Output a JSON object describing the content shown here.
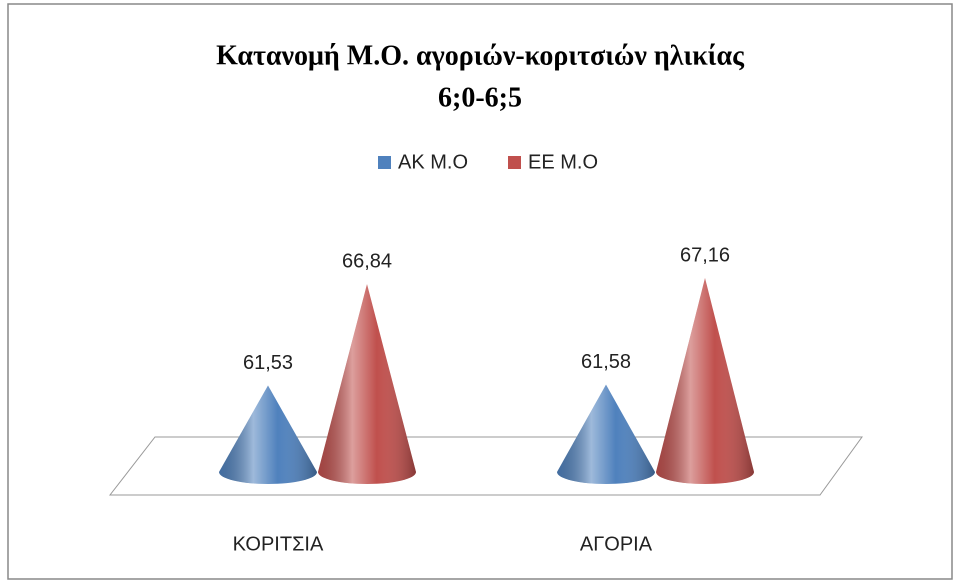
{
  "chart_data": {
    "type": "cone",
    "title": "Κατανομή Μ.Ο. αγοριών-κοριτσιών ηλικίας",
    "subtitle": "6;0-6;5",
    "categories": [
      "ΚΟΡΙΤΣΙΑ",
      "ΑΓΟΡΙΑ"
    ],
    "series": [
      {
        "name": "ΑΚ Μ.Ο",
        "color": "#4f81bd",
        "values": [
          61.53,
          61.58
        ],
        "value_labels": [
          "61,53",
          "61,58"
        ]
      },
      {
        "name": "ΕΕ Μ.Ο",
        "color": "#c0504d",
        "values": [
          66.84,
          67.16
        ],
        "value_labels": [
          "66,84",
          "67,16"
        ]
      }
    ],
    "ylim": [
      57,
      68
    ],
    "legend": "top"
  }
}
